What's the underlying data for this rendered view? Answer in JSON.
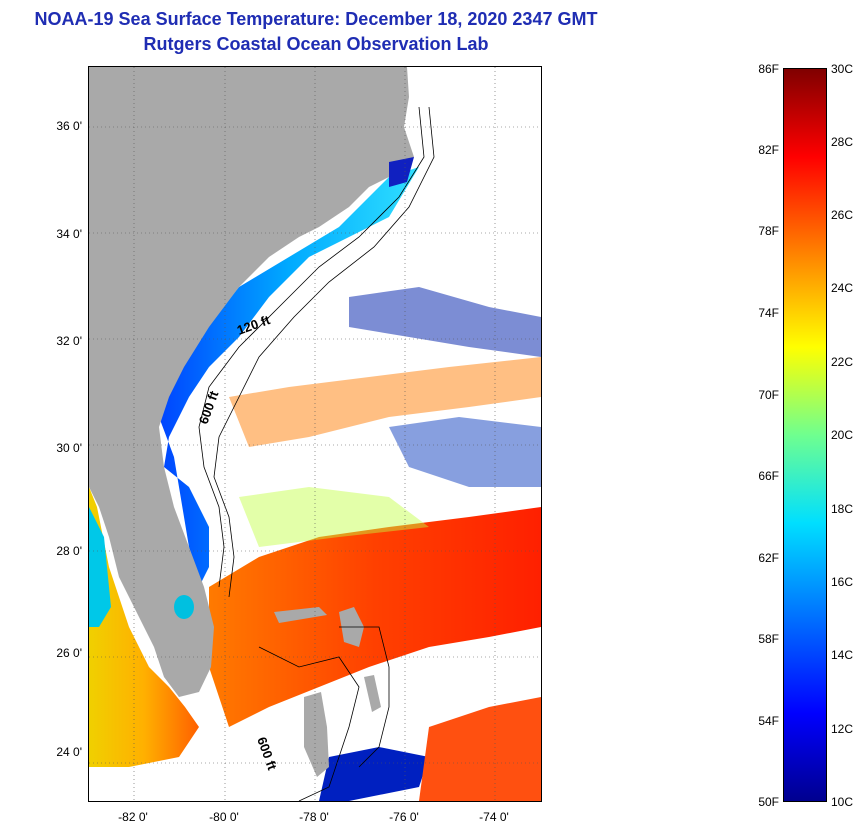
{
  "title": "NOAA-19 Sea Surface Temperature:  December 18, 2020 2347 GMT",
  "subtitle": "Rutgers Coastal Ocean Observation Lab",
  "map": {
    "lat_ticks": [
      "36 0'",
      "34 0'",
      "32 0'",
      "30 0'",
      "28 0'",
      "26 0'",
      "24 0'"
    ],
    "lon_ticks": [
      "-82 0'",
      "-80 0'",
      "-78 0'",
      "-76 0'",
      "-74 0'"
    ],
    "lat_range": [
      23,
      37.2
    ],
    "lon_range": [
      -83,
      -73
    ],
    "grid": "dotted",
    "isobath_labels": [
      "120 ft",
      "600 ft",
      "600 ft"
    ],
    "land_color": "#a9a9a9",
    "no_data_color": "#ffffff"
  },
  "colorbar": {
    "fahrenheit_labels": [
      "86F",
      "82F",
      "78F",
      "74F",
      "70F",
      "66F",
      "62F",
      "58F",
      "54F",
      "50F"
    ],
    "celsius_labels": [
      "30C",
      "28C",
      "26C",
      "24C",
      "22C",
      "20C",
      "18C",
      "16C",
      "14C",
      "12C",
      "10C"
    ],
    "min_c": 10,
    "max_c": 30,
    "min_f": 50,
    "max_f": 86,
    "colors": [
      "#00008f",
      "#0000ff",
      "#0070ff",
      "#00dfff",
      "#6fff8f",
      "#ffff00",
      "#ff8000",
      "#ff0000",
      "#800000"
    ]
  }
}
